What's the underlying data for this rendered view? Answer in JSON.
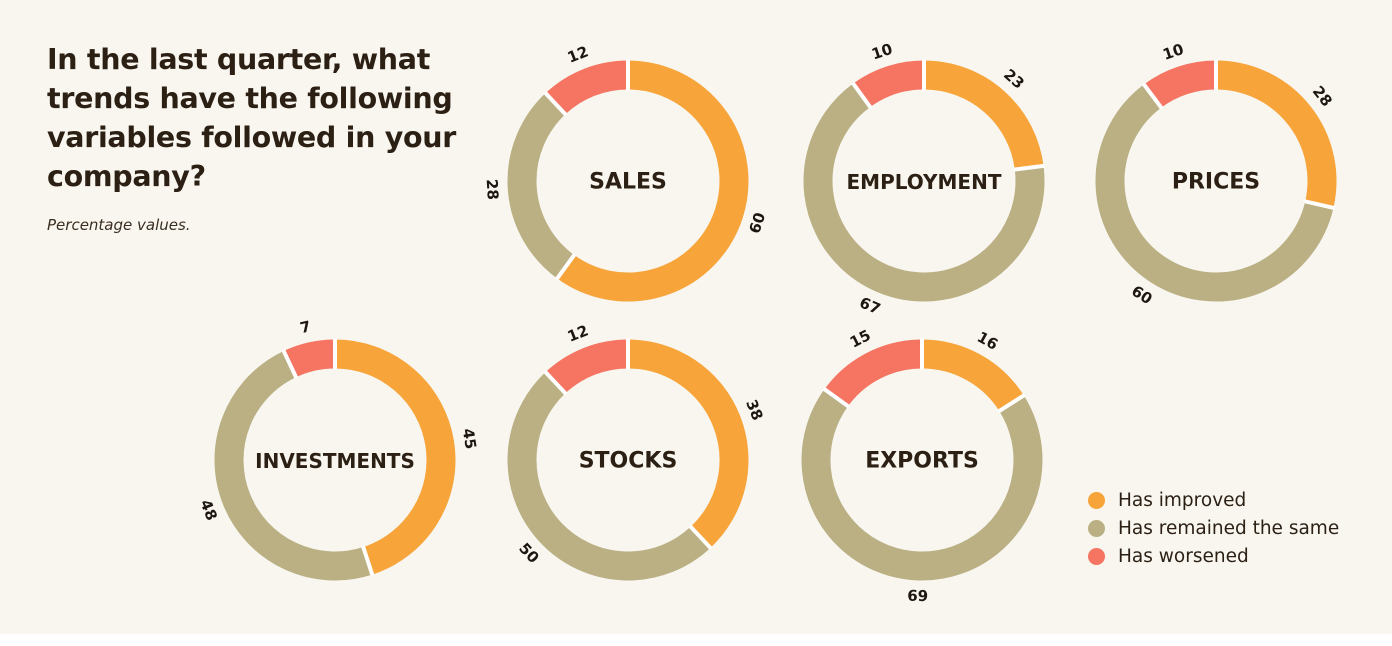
{
  "title": "In the last quarter, what trends have the following variables followed in your company?",
  "subtitle": "Percentage values.",
  "legend": [
    {
      "label": "Has improved",
      "color": "#f7a43a"
    },
    {
      "label": "Has remained the same",
      "color": "#bab083"
    },
    {
      "label": "Has worsened",
      "color": "#f57562"
    }
  ],
  "chart_data": [
    {
      "type": "pie",
      "title": "SALES",
      "labels": [
        "Has improved",
        "Has remained the same",
        "Has worsened"
      ],
      "values": [
        60,
        28,
        12
      ]
    },
    {
      "type": "pie",
      "title": "EMPLOYMENT",
      "labels": [
        "Has improved",
        "Has remained the same",
        "Has worsened"
      ],
      "values": [
        23,
        67,
        10
      ]
    },
    {
      "type": "pie",
      "title": "PRICES",
      "labels": [
        "Has improved",
        "Has remained the same",
        "Has worsened"
      ],
      "values": [
        28,
        60,
        10
      ]
    },
    {
      "type": "pie",
      "title": "INVESTMENTS",
      "labels": [
        "Has improved",
        "Has remained the same",
        "Has worsened"
      ],
      "values": [
        45,
        48,
        7
      ]
    },
    {
      "type": "pie",
      "title": "STOCKS",
      "labels": [
        "Has improved",
        "Has remained the same",
        "Has worsened"
      ],
      "values": [
        38,
        50,
        12
      ]
    },
    {
      "type": "pie",
      "title": "EXPORTS",
      "labels": [
        "Has improved",
        "Has remained the same",
        "Has worsened"
      ],
      "values": [
        16,
        69,
        15
      ]
    }
  ]
}
